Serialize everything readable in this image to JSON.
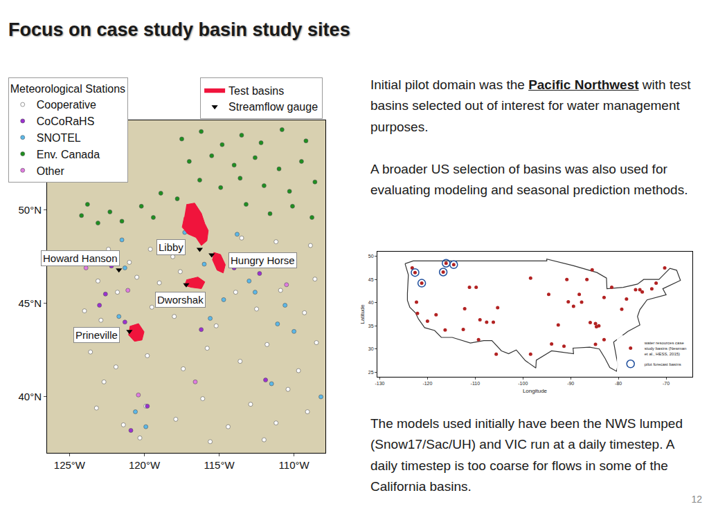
{
  "slide": {
    "title": "Focus on case study basin study sites",
    "paragraphs": [
      {
        "before": "Initial pilot domain was the ",
        "highlight": "Pacific Northwest",
        "after": " with test basins selected out of interest for water management purposes."
      },
      {
        "before": "A broader US selection of basins was also used for evaluating modeling and seasonal prediction methods."
      },
      {
        "before": "The models used initially have been the NWS lumped (Snow17/Sac/UH) and VIC run at a daily timestep.  A daily timestep is too coarse for flows in some of the California basins."
      }
    ],
    "page_number": "12"
  },
  "chart_data": [
    {
      "type": "map",
      "xlim": [
        -126.5,
        -107.9
      ],
      "ylim": [
        37.0,
        54.8
      ],
      "xticks": [
        {
          "value": -125,
          "label": "125°W"
        },
        {
          "value": -120,
          "label": "120°W"
        },
        {
          "value": -115,
          "label": "115°W"
        },
        {
          "value": -110,
          "label": "110°W"
        }
      ],
      "yticks": [
        {
          "value": 40,
          "label": "40°N"
        },
        {
          "value": 45,
          "label": "45°N"
        },
        {
          "value": 50,
          "label": "50°N"
        }
      ],
      "legend_title": "Meteorological Stations",
      "series": [
        {
          "name": "Cooperative",
          "color": "#ffffff",
          "marker": "circle",
          "lon": [
            -123.5,
            -122.4,
            -121.0,
            -119.6,
            -118.1,
            -123.1,
            -121.8,
            -120.5,
            -119.0,
            -117.6,
            -113.5,
            -112.4,
            -111.2,
            -110.0,
            -108.9,
            -124.0,
            -122.9,
            -119.5,
            -118.0,
            -116.8,
            -115.2,
            -113.9,
            -112.5,
            -110.9,
            -109.3,
            -123.6,
            -121.9,
            -119.8,
            -117.4,
            -115.8,
            -113.6,
            -111.8,
            -109.7,
            -123.2,
            -121.4,
            -119.9,
            -117.9,
            -116.1,
            -114.4,
            -112.9,
            -111.2,
            -109.1,
            -122.7,
            -120.3,
            -115.6,
            -112.0,
            -110.4,
            -108.5,
            -108.6,
            -114.1
          ],
          "lat": [
            47.5,
            47.9,
            47.2,
            47.9,
            47.5,
            46.2,
            45.6,
            46.4,
            46.1,
            46.7,
            48.5,
            47.5,
            48.3,
            47.2,
            48.1,
            44.6,
            44.1,
            44.8,
            44.3,
            44.9,
            43.8,
            45.6,
            44.7,
            45.7,
            44.5,
            42.4,
            41.6,
            42.2,
            41.5,
            42.6,
            41.9,
            42.8,
            41.4,
            39.4,
            38.5,
            39.5,
            38.8,
            39.9,
            38.4,
            39.6,
            38.6,
            39.2,
            40.8,
            37.8,
            37.6,
            37.7,
            40.4,
            42.9,
            46.3,
            47.0
          ]
        },
        {
          "name": "CoCoRaHS",
          "color": "#9b30d0",
          "marker": "circle",
          "lon": [
            -122.2,
            -117.4,
            -116.2,
            -111.9,
            -122.6,
            -123.0,
            -121.3,
            -114.0,
            -119.8,
            -120.9,
            -112.3
          ],
          "lat": [
            47.0,
            47.7,
            43.6,
            40.9,
            45.5,
            44.9,
            44.0,
            46.9,
            39.5,
            38.2,
            46.6
          ]
        },
        {
          "name": "SNOTEL",
          "color": "#5bb8e8",
          "marker": "circle",
          "lon": [
            -121.5,
            -121.3,
            -121.7,
            -117.3,
            -116.0,
            -114.7,
            -115.6,
            -113.0,
            -110.6,
            -111.5,
            -110.0,
            -108.2,
            -119.9,
            -120.6,
            -117.1,
            -113.8,
            -112.6,
            -111.1
          ],
          "lat": [
            48.4,
            46.9,
            44.3,
            48.8,
            47.1,
            45.2,
            44.2,
            46.2,
            44.9,
            40.7,
            43.5,
            40.0,
            38.4,
            39.2,
            45.3,
            48.7,
            45.6,
            43.9
          ]
        },
        {
          "name": "Env. Canada",
          "color": "#1f8f1f",
          "marker": "circle",
          "lon": [
            -117.5,
            -116.2,
            -114.8,
            -113.5,
            -112.2,
            -110.8,
            -109.2,
            -117.0,
            -115.5,
            -114.0,
            -112.6,
            -111.0,
            -109.5,
            -116.3,
            -114.9,
            -113.6,
            -112.0,
            -110.3,
            -108.6,
            -117.8,
            -113.2,
            -111.6,
            -110.1,
            -108.8,
            -124.2,
            -123.1,
            -122.3,
            -121.5,
            -120.2,
            -119.4,
            -123.8,
            -118.9
          ],
          "lat": [
            53.8,
            54.2,
            53.5,
            54.0,
            53.6,
            54.3,
            53.7,
            52.6,
            52.9,
            52.4,
            52.8,
            52.2,
            52.6,
            51.6,
            51.2,
            51.7,
            51.3,
            51.0,
            51.5,
            50.6,
            50.3,
            49.8,
            50.2,
            49.6,
            49.7,
            49.3,
            49.9,
            49.4,
            50.2,
            49.6,
            50.3,
            50.9
          ]
        },
        {
          "name": "Other",
          "color": "#e07be0",
          "marker": "circle",
          "lon": [
            -123.9,
            -121.1,
            -118.6,
            -116.6,
            -120.4,
            -110.5
          ],
          "lat": [
            46.9,
            45.7,
            45.2,
            40.8,
            40.1,
            46.0
          ]
        }
      ],
      "basins": {
        "name": "Test basins",
        "color": "#f0143c",
        "polygons": [
          {
            "lon": [
              -117.19,
              -116.64,
              -116.19,
              -115.96,
              -115.73,
              -115.82,
              -116.19,
              -116.55,
              -117.1,
              -117.47,
              -117.33
            ],
            "lat": [
              50.29,
              50.37,
              49.82,
              49.27,
              48.9,
              48.35,
              48.1,
              48.53,
              48.72,
              49.08,
              49.63
            ]
          },
          {
            "lon": [
              -115.37,
              -114.91,
              -114.59,
              -114.73,
              -115.14,
              -115.46
            ],
            "lat": [
              47.73,
              47.62,
              47.07,
              46.63,
              46.78,
              47.36
            ]
          },
          {
            "lon": [
              -117.19,
              -116.42,
              -115.96,
              -116.19,
              -116.87,
              -117.33
            ],
            "lat": [
              46.26,
              46.41,
              46.15,
              45.79,
              45.86,
              45.97
            ]
          },
          {
            "lon": [
              -120.98,
              -120.39,
              -120.02,
              -120.16,
              -120.66,
              -121.07
            ],
            "lat": [
              43.77,
              43.92,
              43.48,
              43.04,
              42.97,
              43.33
            ]
          }
        ]
      },
      "gauges": {
        "name": "Streamflow gauge",
        "color": "#000000",
        "marker": "triangle-down",
        "lon": [
          -116.3,
          -115.5,
          -121.7,
          -117.2,
          -121.0
        ],
        "lat": [
          47.9,
          47.6,
          46.8,
          46.0,
          43.5
        ]
      },
      "annotations": [
        {
          "text": "Libby",
          "lon": -118.2,
          "lat": 48.0
        },
        {
          "text": "Hungry Horse",
          "lon": -112.1,
          "lat": 47.3
        },
        {
          "text": "Howard Hanson",
          "lon": -124.3,
          "lat": 47.4
        },
        {
          "text": "Dworshak",
          "lon": -117.6,
          "lat": 45.2
        },
        {
          "text": "Prineville",
          "lon": -123.2,
          "lat": 43.3
        }
      ]
    },
    {
      "type": "scatter",
      "xlabel": "Longitude",
      "ylabel": "Latitude",
      "xlim": [
        -130.5,
        -64.5
      ],
      "ylim": [
        24,
        51
      ],
      "xticks": [
        -130,
        -120,
        -110,
        -100,
        -90,
        -80,
        -70
      ],
      "yticks": [
        25,
        30,
        35,
        40,
        45,
        50
      ],
      "outline": {
        "color": "#333333",
        "lon": [
          -124.7,
          -123,
          -95,
          -95,
          -89.5,
          -84.5,
          -82.5,
          -82.4,
          -79,
          -76,
          -74.7,
          -71.5,
          -69.2,
          -67.8,
          -67,
          -70.7,
          -70,
          -74,
          -75.5,
          -76,
          -75.5,
          -78,
          -81,
          -80.1,
          -80.4,
          -81.8,
          -82.8,
          -84,
          -86,
          -89.5,
          -89.4,
          -91,
          -94,
          -97.2,
          -97.3,
          -99.5,
          -101.4,
          -103,
          -104.5,
          -106.5,
          -108.2,
          -111,
          -114.8,
          -117.1,
          -118.5,
          -120.6,
          -121.9,
          -122.5,
          -123.7,
          -124.2,
          -124.2,
          -124,
          -124.7
        ],
        "lat": [
          48.4,
          49,
          49,
          49.4,
          48,
          46.5,
          45.3,
          43,
          43.3,
          44,
          45,
          45,
          47.4,
          47,
          44.8,
          43,
          41.7,
          40.6,
          38.5,
          37,
          35.2,
          33.8,
          31.5,
          26.5,
          25.2,
          26,
          28,
          30,
          30.4,
          30.2,
          29,
          29.2,
          29.6,
          27.6,
          25.9,
          27.5,
          29.8,
          29,
          29.6,
          31.8,
          31.8,
          31.3,
          32.5,
          32.5,
          34,
          34.6,
          36.5,
          37.8,
          39,
          40.5,
          42,
          46,
          48.4
        ]
      },
      "series": [
        {
          "name": "water resources case study basins (Newman et al., HESS, 2015)",
          "color": "#b22222",
          "marker": "circle",
          "lon": [
            -123.2,
            -122.6,
            -121.2,
            -116.7,
            -116.1,
            -114.5,
            -122.3,
            -122.1,
            -120.0,
            -118.2,
            -116.3,
            -111.2,
            -109.8,
            -112.2,
            -109.0,
            -107.6,
            -106.2,
            -112.5,
            -109.3,
            -105.3,
            -105.6,
            -98.4,
            -94.0,
            -91.4,
            -94.6,
            -90.5,
            -89.4,
            -87.7,
            -92.6,
            -85.9,
            -84.8,
            -84.6,
            -84.1,
            -83.0,
            -84.8,
            -79.3,
            -78.3,
            -76.4,
            -75.5,
            -75.0,
            -73.0,
            -72.1,
            -70.3,
            -86.6,
            -85.5,
            -90.8,
            -88.2,
            -81.4,
            -98.4,
            -83.0
          ],
          "lat": [
            47.5,
            46.5,
            44.2,
            46.6,
            48.5,
            48.2,
            40.1,
            37.7,
            36.0,
            37.4,
            34.1,
            43.3,
            43.3,
            38.7,
            36.3,
            35.8,
            35.8,
            34.2,
            32.0,
            38.9,
            28.9,
            28.9,
            31.1,
            30.6,
            41.8,
            40.2,
            39.2,
            40.1,
            35.2,
            35.7,
            35.5,
            34.8,
            35.0,
            32.0,
            31.0,
            38.6,
            40.8,
            42.8,
            42.8,
            42.3,
            43.0,
            44.2,
            47.5,
            45.0,
            47.1,
            45.0,
            41.8,
            43.3,
            45.3,
            41.1
          ]
        },
        {
          "name": "pilot forecast basins",
          "color": "#1f4e9c",
          "marker": "circle-open",
          "lon": [
            -122.6,
            -121.2,
            -116.7,
            -116.1,
            -114.5
          ],
          "lat": [
            46.5,
            44.2,
            46.6,
            48.5,
            48.2
          ]
        }
      ]
    }
  ]
}
